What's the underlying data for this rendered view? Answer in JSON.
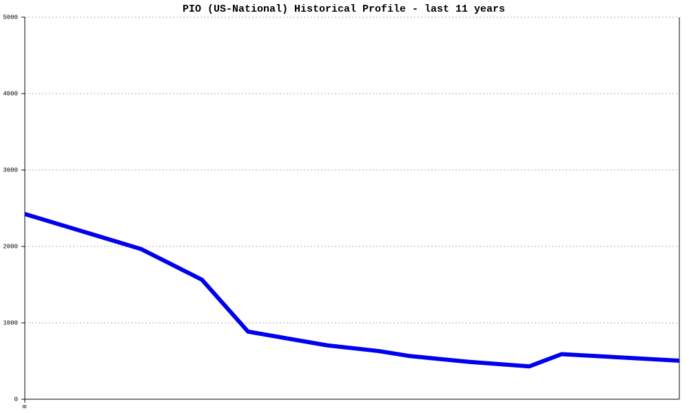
{
  "chart_data": {
    "type": "line",
    "title": "PIO (US-National) Historical Profile - last 11 years",
    "x": [
      0,
      169,
      257,
      324,
      439,
      514,
      559,
      644,
      732,
      779,
      950
    ],
    "values": [
      2425,
      1965,
      1565,
      885,
      705,
      630,
      565,
      490,
      430,
      590,
      505
    ],
    "color": "#0000ee",
    "xlim": [
      0,
      950
    ],
    "xticks": [
      0
    ],
    "ylim": [
      0,
      5000
    ],
    "yticks": [
      0,
      1000,
      2000,
      3000,
      4000,
      5000
    ],
    "grid": true
  }
}
